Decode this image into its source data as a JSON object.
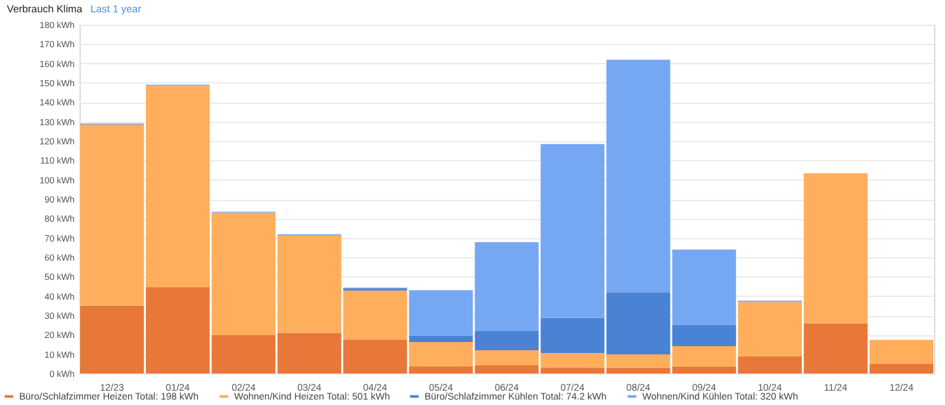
{
  "chart_data": {
    "type": "bar",
    "title": "Verbrauch Klima",
    "subtitle": "Last 1 year",
    "stacked": true,
    "categories": [
      "12/23",
      "01/24",
      "02/24",
      "03/24",
      "04/24",
      "05/24",
      "06/24",
      "07/24",
      "08/24",
      "09/24",
      "10/24",
      "11/24",
      "12/24"
    ],
    "series": [
      {
        "name": "Büro/Schlafzimmer Heizen  Total: 198 kWh",
        "color": "#e8773a",
        "values": [
          35,
          44.5,
          19.8,
          21,
          17.6,
          3.8,
          4.2,
          3.1,
          2.8,
          3.5,
          8.9,
          25.9,
          4.9
        ]
      },
      {
        "name": "Wohnen/Kind Heizen  Total: 501 kWh",
        "color": "#ffae5c",
        "values": [
          93.5,
          104,
          63.2,
          50.3,
          25.2,
          12.4,
          7.8,
          7.5,
          7.1,
          10.6,
          28,
          77.4,
          12.5
        ]
      },
      {
        "name": "Büro/Schlafzimmer Kühlen  Total: 74.2 kWh",
        "color": "#4a82d4",
        "values": [
          0,
          0,
          0,
          0,
          1.2,
          3.3,
          9.9,
          18.1,
          32,
          11.1,
          0,
          0,
          0
        ]
      },
      {
        "name": "Wohnen/Kind Kühlen  Total: 320 kWh",
        "color": "#76a7f3",
        "values": [
          0.5,
          0.5,
          0.5,
          0.5,
          0.3,
          23.5,
          45.9,
          89.7,
          120,
          38.8,
          0.7,
          0,
          0
        ]
      }
    ],
    "ylim": [
      0,
      180
    ],
    "yticks": [
      {
        "value": 0,
        "label": "0 kWh"
      },
      {
        "value": 10,
        "label": "10 kWh"
      },
      {
        "value": 20,
        "label": "20 kWh"
      },
      {
        "value": 30,
        "label": "30 kWh"
      },
      {
        "value": 40,
        "label": "40 kWh"
      },
      {
        "value": 50,
        "label": "50 kWh"
      },
      {
        "value": 60,
        "label": "60 kWh"
      },
      {
        "value": 70,
        "label": "70 kWh"
      },
      {
        "value": 80,
        "label": "80 kWh"
      },
      {
        "value": 90,
        "label": "90 kWh"
      },
      {
        "value": 100,
        "label": "100 kWh"
      },
      {
        "value": 110,
        "label": "110 kWh"
      },
      {
        "value": 120,
        "label": "120 kWh"
      },
      {
        "value": 130,
        "label": "130 kWh"
      },
      {
        "value": 140,
        "label": "140 kWh"
      },
      {
        "value": 150,
        "label": "150 kWh"
      },
      {
        "value": 160,
        "label": "160 kWh"
      },
      {
        "value": 170,
        "label": "170 kWh"
      },
      {
        "value": 180,
        "label": "180 kWh"
      }
    ],
    "grid": "y",
    "legend": "bottom"
  }
}
